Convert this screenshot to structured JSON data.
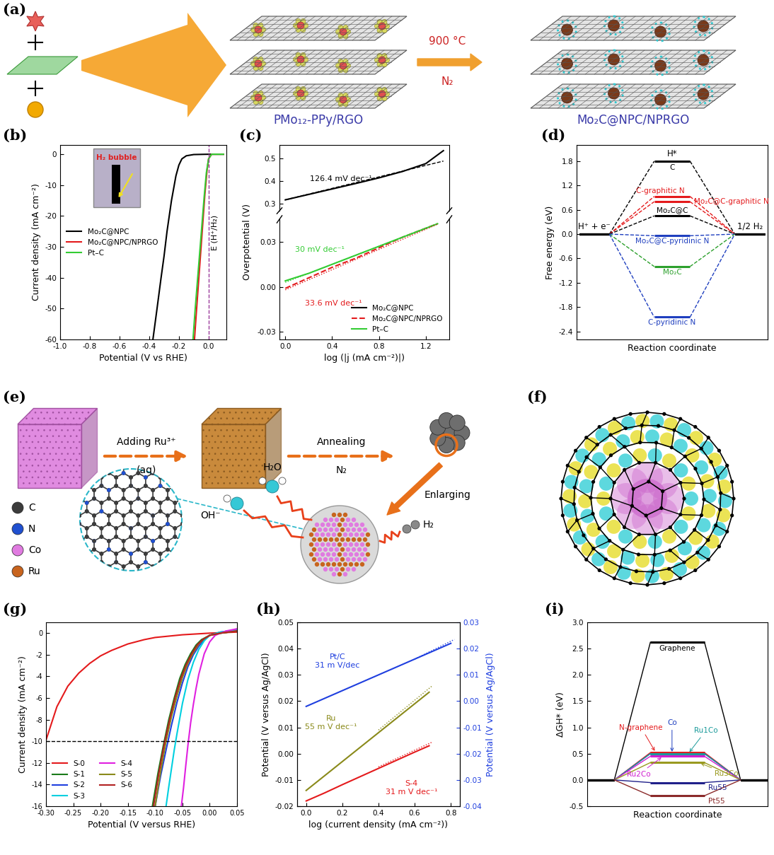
{
  "schematic_a": {
    "panel": "(a)",
    "precursor_label": "PMo₁₂-PPy/RGO",
    "product_label": "Mo₂C@NPC/NPRGO",
    "condition_top": "900 °C",
    "condition_bottom": "N₂"
  },
  "schematic_e": {
    "panel": "(e)",
    "step1_top": "Adding Ru³⁺",
    "step1_bottom": "(aq)",
    "step2_top": "Annealing",
    "step2_bottom": "N₂",
    "zoom": "Enlarging",
    "reactants": [
      "H₂O",
      "OH⁻"
    ],
    "product": "H₂",
    "atoms": [
      {
        "label": "C",
        "color": "#3c3c3c"
      },
      {
        "label": "N",
        "color": "#2050d0"
      },
      {
        "label": "Co",
        "color": "#e07be0"
      },
      {
        "label": "Ru",
        "color": "#c8641e"
      }
    ]
  },
  "image_f": {
    "panel": "(f)"
  },
  "chart_data": [
    {
      "panel": "(b)",
      "type": "line",
      "xlabel": "Potential (V vs RHE)",
      "ylabel": "Current density (mA cm⁻²)",
      "xlim": [
        -1.0,
        0.12
      ],
      "xticks": [
        -1.0,
        -0.8,
        -0.6,
        -0.4,
        -0.2,
        0.0
      ],
      "ylim": [
        -60,
        3
      ],
      "yticks": [
        -60,
        -50,
        -40,
        -30,
        -20,
        -10,
        0
      ],
      "legend": "center left",
      "inset_label": "H₂ bubble",
      "vline": {
        "value": 0.0,
        "label": "E (H⁺/H₂)",
        "color": "#9b3b9b"
      },
      "series": [
        {
          "name": "Mo₂C@NPC",
          "color": "#000000",
          "x": [
            -0.375,
            -0.35,
            -0.32,
            -0.3,
            -0.28,
            -0.25,
            -0.22,
            -0.2,
            -0.18,
            -0.15,
            -0.1,
            0.0,
            0.1
          ],
          "values": [
            -60,
            -51,
            -40,
            -33,
            -25,
            -15,
            -7,
            -3.5,
            -1.5,
            -0.5,
            -0.1,
            0,
            0
          ]
        },
        {
          "name": "Mo₂C@NPC/NPRGO",
          "color": "#e31a1c",
          "x": [
            -0.095,
            -0.085,
            -0.07,
            -0.055,
            -0.04,
            -0.025,
            -0.01,
            0.0,
            0.02,
            0.05,
            0.1
          ],
          "values": [
            -60,
            -53,
            -43,
            -33,
            -23,
            -13,
            -5,
            -1.5,
            0,
            0,
            0
          ]
        },
        {
          "name": "Pt–C",
          "color": "#33cc33",
          "x": [
            -0.105,
            -0.09,
            -0.075,
            -0.06,
            -0.045,
            -0.03,
            -0.015,
            0.0,
            0.02,
            0.05,
            0.1
          ],
          "values": [
            -60,
            -50,
            -41,
            -32,
            -23,
            -14,
            -6,
            -1.5,
            0,
            0,
            0
          ]
        }
      ]
    },
    {
      "panel": "(c)",
      "type": "line",
      "ylabel": "Overpotential (V)",
      "xlim": [
        -0.05,
        1.4
      ],
      "ylim": [
        0.27,
        0.56
      ],
      "yticks": [
        0.3,
        0.4,
        0.5
      ],
      "tick_labels": "y",
      "series": [
        {
          "name": "Mo₂C@NPC",
          "color": "#000000",
          "x": [
            0.0,
            0.2,
            0.4,
            0.6,
            0.8,
            1.0,
            1.2,
            1.35
          ],
          "values": [
            0.318,
            0.342,
            0.366,
            0.39,
            0.415,
            0.443,
            0.478,
            0.535
          ]
        },
        {
          "color": "#000000",
          "line_style": "dashed",
          "x": [
            0.0,
            1.35
          ],
          "values": [
            0.318,
            0.489
          ],
          "annotation": "126.4 mV dec⁻¹"
        }
      ]
    },
    {
      "type": "line",
      "xlabel": "log (|j (mA cm⁻²)|)",
      "xlim": [
        -0.05,
        1.4
      ],
      "xticks": [
        0.0,
        0.4,
        0.8,
        1.2
      ],
      "ylim": [
        -0.035,
        0.045
      ],
      "yticks": [
        -0.03,
        {
          "value": 0.0,
          "label": "0.00"
        },
        0.03
      ],
      "legend": "lower right",
      "series": [
        {
          "name": "Mo₂C@NPC/NPRGO",
          "color": "#e31a1c",
          "line_style": "dashed",
          "x": [
            0.0,
            0.2,
            0.4,
            0.6,
            0.8,
            1.0,
            1.2,
            1.3
          ],
          "values": [
            -0.001,
            0.006,
            0.013,
            0.019,
            0.026,
            0.033,
            0.039,
            0.042
          ]
        },
        {
          "name": "Pt–C",
          "color": "#33cc33",
          "x": [
            0.0,
            0.2,
            0.4,
            0.6,
            0.8,
            1.0,
            1.2,
            1.3
          ],
          "values": [
            0.004,
            0.009,
            0.015,
            0.021,
            0.027,
            0.033,
            0.039,
            0.042
          ]
        },
        {
          "color": "#33cc33",
          "line_style": "dotted",
          "x": [
            0.0,
            1.3
          ],
          "values": [
            0.003,
            0.042
          ],
          "annotation": "30 mV dec⁻¹"
        },
        {
          "color": "#e31a1c",
          "line_style": "dotted",
          "x": [
            0.0,
            1.3
          ],
          "values": [
            -0.002,
            0.0417
          ],
          "annotation": "33.6 mV dec⁻¹"
        }
      ]
    },
    {
      "panel": "(d)",
      "type": "energy",
      "xlabel": "Reaction coordinate",
      "ylabel": "Free energy (eV)",
      "ylim": [
        -2.6,
        2.2
      ],
      "yticks": [
        -2.4,
        -1.8,
        -1.2,
        -0.6,
        0.0,
        0.6,
        1.2,
        1.8
      ],
      "tick_labels": "y",
      "line_style": "dashed",
      "categories": [
        "H⁺ + e⁻",
        "H*",
        "1/2 H₂"
      ],
      "series": [
        {
          "name": "C",
          "color": "#000000",
          "values": [
            0,
            1.8,
            0
          ]
        },
        {
          "name": "C-graphitic N",
          "color": "#e41a1c",
          "values": [
            0,
            0.93,
            0
          ]
        },
        {
          "name": "Mo₂C@C-graphitic N",
          "color": "#e41a1c",
          "values": [
            0,
            0.8,
            0
          ]
        },
        {
          "name": "Mo₂C@C",
          "color": "#000000",
          "values": [
            0,
            0.45,
            0
          ]
        },
        {
          "name": "Mo₂C@C-pyridinic N",
          "color": "#1f3fbf",
          "values": [
            0,
            -0.04,
            0
          ]
        },
        {
          "name": "Mo₂C",
          "color": "#2ca02c",
          "values": [
            0,
            -0.8,
            0
          ]
        },
        {
          "name": "C-pyridinic N",
          "color": "#1f3fbf",
          "values": [
            0,
            -2.05,
            0
          ]
        }
      ]
    },
    {
      "panel": "(g)",
      "type": "line",
      "xlabel": "Potential (V versus RHE)",
      "ylabel": "Current density (mA cm⁻²)",
      "xlim": [
        -0.3,
        0.05
      ],
      "xticks": [
        {
          "value": -0.3,
          "label": "-0.30"
        },
        -0.25,
        {
          "value": -0.2,
          "label": "-0.20"
        },
        -0.15,
        {
          "value": -0.1,
          "label": "-0.10"
        },
        -0.05,
        {
          "value": 0.0,
          "label": "0.00"
        },
        0.05
      ],
      "ylim": [
        -16,
        1
      ],
      "yticks": [
        -16,
        -14,
        -12,
        -10,
        -8,
        -6,
        -4,
        -2,
        0
      ],
      "hline": -10,
      "legend": "lower left",
      "series": [
        {
          "name": "S-0",
          "color": "#e41a1c",
          "x": [
            -0.3,
            -0.28,
            -0.26,
            -0.24,
            -0.22,
            -0.2,
            -0.18,
            -0.15,
            -0.12,
            -0.1,
            -0.05,
            0.0,
            0.05
          ],
          "values": [
            -9.9,
            -6.8,
            -4.9,
            -3.7,
            -2.8,
            -2.1,
            -1.6,
            -1.0,
            -0.6,
            -0.4,
            -0.15,
            0,
            0.1
          ]
        },
        {
          "name": "S-1",
          "color": "#1a7a1a",
          "x": [
            -0.105,
            -0.095,
            -0.085,
            -0.075,
            -0.065,
            -0.055,
            -0.045,
            -0.035,
            -0.025,
            -0.015,
            0.0,
            0.02,
            0.05
          ],
          "values": [
            -16,
            -13,
            -10.4,
            -8,
            -6,
            -4.2,
            -2.9,
            -1.9,
            -1.1,
            -0.6,
            -0.2,
            0,
            0.2
          ]
        },
        {
          "name": "S-2",
          "color": "#1f3fdf",
          "x": [
            -0.1,
            -0.09,
            -0.08,
            -0.07,
            -0.06,
            -0.05,
            -0.04,
            -0.03,
            -0.02,
            -0.01,
            0.0,
            0.02,
            0.05
          ],
          "values": [
            -16,
            -13.2,
            -10.8,
            -8.5,
            -6.4,
            -4.6,
            -3.1,
            -2,
            -1.2,
            -0.6,
            -0.2,
            0.1,
            0.3
          ]
        },
        {
          "name": "S-3",
          "color": "#00d0e0",
          "x": [
            -0.08,
            -0.075,
            -0.07,
            -0.065,
            -0.06,
            -0.05,
            -0.04,
            -0.03,
            -0.02,
            -0.01,
            0.0,
            0.02,
            0.05
          ],
          "values": [
            -16,
            -14.2,
            -12.5,
            -10.8,
            -9.3,
            -6.5,
            -4.3,
            -2.7,
            -1.5,
            -0.7,
            -0.2,
            0.1,
            0.3
          ]
        },
        {
          "name": "S-4",
          "color": "#e020e0",
          "x": [
            -0.052,
            -0.048,
            -0.044,
            -0.04,
            -0.035,
            -0.03,
            -0.025,
            -0.02,
            -0.01,
            0.0,
            0.01,
            0.03,
            0.05
          ],
          "values": [
            -16,
            -14.3,
            -12.3,
            -10.4,
            -8.3,
            -6.6,
            -5.1,
            -3.8,
            -1.9,
            -0.8,
            -0.2,
            0.2,
            0.4
          ]
        },
        {
          "name": "S-5",
          "color": "#8a8a1a",
          "x": [
            -0.1,
            -0.09,
            -0.08,
            -0.07,
            -0.06,
            -0.05,
            -0.04,
            -0.03,
            -0.02,
            -0.01,
            0.0,
            0.02,
            0.05
          ],
          "values": [
            -16,
            -12.8,
            -10,
            -7.7,
            -5.8,
            -4.1,
            -2.8,
            -1.8,
            -1,
            -0.5,
            -0.2,
            0,
            0.2
          ]
        },
        {
          "name": "S-6",
          "color": "#b22222",
          "x": [
            -0.103,
            -0.093,
            -0.083,
            -0.073,
            -0.063,
            -0.053,
            -0.043,
            -0.033,
            -0.023,
            -0.013,
            0.0,
            0.02,
            0.05
          ],
          "values": [
            -16,
            -12.9,
            -10.2,
            -7.9,
            -5.9,
            -4.2,
            -2.9,
            -1.9,
            -1.1,
            -0.6,
            -0.2,
            0,
            0.2
          ]
        }
      ]
    },
    {
      "panel": "(h)",
      "type": "line",
      "xlabel": "log (current density (mA cm⁻²))",
      "ylabel": "Potential (V versus Ag/AgCl)",
      "y2label": "Potential (V versus Ag/AgCl)",
      "xlim": [
        -0.05,
        0.85
      ],
      "xticks": [
        0.0,
        0.2,
        0.4,
        0.6,
        0.8
      ],
      "ylim": [
        -0.02,
        0.05
      ],
      "yticks": [
        -0.02,
        -0.01,
        {
          "value": 0.0,
          "label": "0.00"
        },
        0.01,
        0.02,
        0.03,
        0.04,
        0.05
      ],
      "y2lim": [
        -0.04,
        0.03
      ],
      "y2ticks": [
        -0.04,
        -0.03,
        -0.02,
        -0.01,
        {
          "value": 0.0,
          "label": "0.00"
        },
        0.01,
        0.02,
        0.03
      ],
      "series": [
        {
          "name": "Pt/C",
          "color": "#1f3fdf",
          "axis": "y2",
          "x": [
            0.0,
            0.1,
            0.2,
            0.3,
            0.4,
            0.5,
            0.6,
            0.7,
            0.8
          ],
          "values": [
            -0.002,
            0.001,
            0.004,
            0.007,
            0.01,
            0.013,
            0.016,
            0.019,
            0.022
          ],
          "annotation": "Pt/C\n31 m V/dec"
        },
        {
          "name": "Ru",
          "color": "#8a8a1a",
          "x": [
            0.0,
            0.1,
            0.2,
            0.3,
            0.4,
            0.5,
            0.6,
            0.68
          ],
          "values": [
            -0.014,
            -0.0085,
            -0.003,
            0.0025,
            0.008,
            0.0135,
            0.019,
            0.0234
          ],
          "annotation": "Ru\n55 m V dec⁻¹"
        },
        {
          "name": "S-4",
          "color": "#e41a1c",
          "x": [
            0.0,
            0.1,
            0.2,
            0.3,
            0.4,
            0.5,
            0.6,
            0.68
          ],
          "values": [
            -0.018,
            -0.015,
            -0.0118,
            -0.0087,
            -0.0056,
            -0.0025,
            0.0006,
            0.003
          ],
          "annotation": "S-4\n31 m V dec⁻¹"
        },
        {
          "color": "#1f3fdf",
          "axis": "y2",
          "line_style": "dotted",
          "x": [
            0.6,
            0.82
          ],
          "values": [
            0.016,
            0.0235
          ]
        },
        {
          "color": "#8a8a1a",
          "line_style": "dotted",
          "x": [
            0.4,
            0.7
          ],
          "values": [
            0.009,
            0.026
          ]
        },
        {
          "color": "#e41a1c",
          "line_style": "dotted",
          "x": [
            0.4,
            0.7
          ],
          "values": [
            -0.005,
            0.0045
          ]
        }
      ]
    },
    {
      "panel": "(i)",
      "type": "energy",
      "xlabel": "Reaction coordinate",
      "ylabel": "ΔGH* (eV)",
      "ylim": [
        -0.5,
        3.0
      ],
      "yticks": [
        -0.5,
        0.0,
        0.5,
        1.0,
        1.5,
        2.0,
        2.5,
        3.0
      ],
      "tick_labels": "y",
      "line_style": "solid",
      "categories": [
        null,
        null,
        null
      ],
      "series": [
        {
          "name": "Graphene",
          "color": "#000000",
          "values": [
            0,
            2.62,
            0
          ]
        },
        {
          "name": "N-graphene",
          "color": "#e41a1c",
          "values": [
            0,
            0.52,
            0
          ]
        },
        {
          "name": "Co",
          "color": "#1f3fbf",
          "values": [
            0,
            0.5,
            0
          ]
        },
        {
          "name": "Ru1Co",
          "color": "#1a9a9a",
          "values": [
            0,
            0.5,
            0
          ]
        },
        {
          "name": "Ru2Co",
          "color": "#d020d0",
          "values": [
            0,
            0.45,
            0
          ]
        },
        {
          "name": "Ru3Co",
          "color": "#9a9a20",
          "values": [
            0,
            0.33,
            0
          ]
        },
        {
          "name": "Ru55",
          "color": "#20208a",
          "values": [
            0,
            -0.05,
            0
          ]
        },
        {
          "name": "Pt55",
          "color": "#8b2a2a",
          "values": [
            0,
            -0.3,
            0
          ]
        }
      ]
    }
  ]
}
